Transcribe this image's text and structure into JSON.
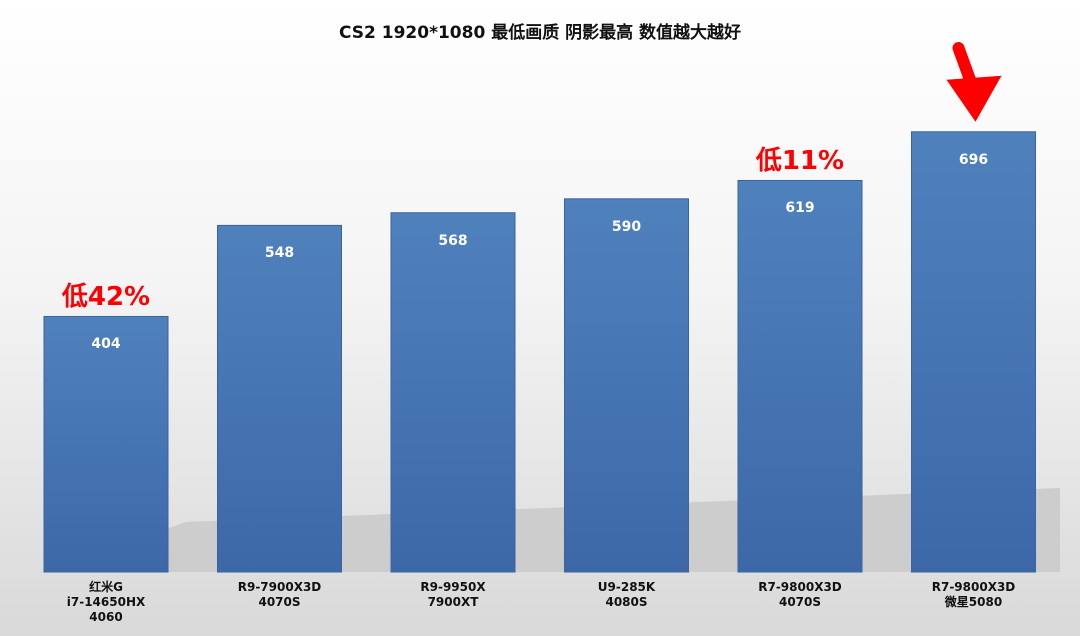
{
  "chart_data": {
    "type": "bar",
    "title": "CS2 1920*1080 最低画质 阴影最高 数值越大越好",
    "categories": [
      "红米G\ni7-14650HX\n4060",
      "R9-7900X3D\n4070S",
      "R9-9950X\n7900XT",
      "U9-285K\n4080S",
      "R7-9800X3D\n4070S",
      "R7-9800X3D\n微星5080"
    ],
    "values": [
      404,
      548,
      568,
      590,
      619,
      696
    ],
    "ylim": [
      0,
      800
    ],
    "grid": false,
    "legend": "none",
    "annotations": [
      {
        "text": "低42%",
        "category_index": 0
      },
      {
        "text": "低11%",
        "category_index": 4
      }
    ],
    "arrow": {
      "category_index": 5,
      "color": "#ff0000"
    },
    "colors": {
      "bar_top": "#4f81bd",
      "bar_bottom": "#3d68a8",
      "annotation": "#ff0000",
      "background_top": "#ffffff",
      "background_bottom": "#d9d9d9"
    }
  }
}
